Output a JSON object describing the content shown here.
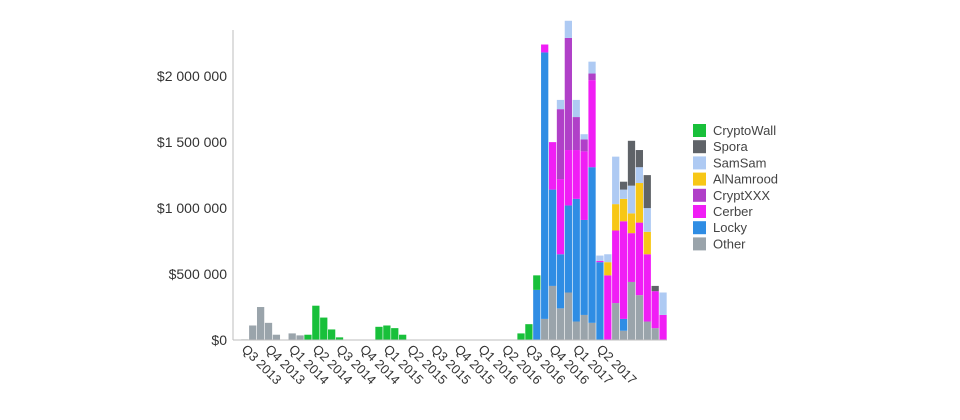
{
  "chart_data": {
    "type": "bar",
    "stacked": true,
    "ylim": [
      0,
      2350000
    ],
    "y_ticks": [
      0,
      500000,
      1000000,
      1500000,
      2000000
    ],
    "y_tick_labels": [
      "$0",
      "$500 000",
      "$1 000 000",
      "$1 500 000",
      "$2 000 000"
    ],
    "x_tick_labels": [
      "Q3 2013",
      "Q4 2013",
      "Q1 2014",
      "Q2 2014",
      "Q3 2014",
      "Q4 2014",
      "Q1 2015",
      "Q2 2015",
      "Q3 2015",
      "Q4 2015",
      "Q1 2016",
      "Q2 2016",
      "Q3 2016",
      "Q4 2016",
      "Q1 2017",
      "Q2 2017"
    ],
    "months_per_quarter": 3,
    "grid": false,
    "legend_position": "right",
    "series": [
      {
        "name": "Other",
        "color": "#9aa4ab",
        "values": [
          0,
          5000,
          110000,
          250000,
          130000,
          40000,
          0,
          50000,
          35000,
          0,
          0,
          0,
          0,
          0,
          0,
          0,
          0,
          0,
          0,
          0,
          0,
          0,
          0,
          0,
          0,
          0,
          0,
          0,
          0,
          0,
          0,
          0,
          0,
          0,
          0,
          0,
          0,
          0,
          0,
          160000,
          410000,
          240000,
          360000,
          140000,
          190000,
          130000,
          0,
          0,
          280000,
          70000,
          440000,
          340000,
          140000,
          90000,
          0
        ]
      },
      {
        "name": "Locky",
        "color": "#2f8de4",
        "values": [
          0,
          0,
          0,
          0,
          0,
          0,
          0,
          0,
          0,
          0,
          0,
          0,
          0,
          0,
          0,
          0,
          0,
          0,
          0,
          0,
          0,
          0,
          0,
          0,
          0,
          0,
          0,
          0,
          0,
          0,
          0,
          0,
          0,
          0,
          0,
          0,
          0,
          0,
          380000,
          2020000,
          730000,
          410000,
          660000,
          930000,
          720000,
          1180000,
          590000,
          0,
          0,
          90000,
          0,
          0,
          0,
          0,
          0
        ]
      },
      {
        "name": "Cerber",
        "color": "#f01ef5",
        "values": [
          0,
          0,
          0,
          0,
          0,
          0,
          0,
          0,
          0,
          0,
          0,
          0,
          0,
          0,
          0,
          0,
          0,
          0,
          0,
          0,
          0,
          0,
          0,
          0,
          0,
          0,
          0,
          0,
          0,
          0,
          0,
          0,
          0,
          0,
          0,
          0,
          0,
          0,
          0,
          60000,
          360000,
          570000,
          420000,
          370000,
          520000,
          660000,
          10000,
          490000,
          550000,
          740000,
          370000,
          550000,
          510000,
          280000,
          190000
        ]
      },
      {
        "name": "CryptXXX",
        "color": "#b040c8",
        "values": [
          0,
          0,
          0,
          0,
          0,
          0,
          0,
          0,
          0,
          0,
          0,
          0,
          0,
          0,
          0,
          0,
          0,
          0,
          0,
          0,
          0,
          0,
          0,
          0,
          0,
          0,
          0,
          0,
          0,
          0,
          0,
          0,
          0,
          0,
          0,
          0,
          0,
          0,
          0,
          0,
          0,
          530000,
          850000,
          250000,
          90000,
          50000,
          0,
          0,
          0,
          0,
          0,
          0,
          0,
          0,
          0
        ]
      },
      {
        "name": "AlNamrood",
        "color": "#f7c716",
        "values": [
          0,
          0,
          0,
          0,
          0,
          0,
          0,
          0,
          0,
          0,
          0,
          0,
          0,
          0,
          0,
          0,
          0,
          0,
          0,
          0,
          0,
          0,
          0,
          0,
          0,
          0,
          0,
          0,
          0,
          0,
          0,
          0,
          0,
          0,
          0,
          0,
          0,
          0,
          0,
          0,
          0,
          0,
          0,
          0,
          0,
          0,
          0,
          100000,
          200000,
          170000,
          150000,
          300000,
          170000,
          0,
          0
        ]
      },
      {
        "name": "SamSam",
        "color": "#aecaf3",
        "values": [
          0,
          0,
          0,
          0,
          0,
          0,
          0,
          0,
          0,
          0,
          0,
          0,
          0,
          0,
          0,
          0,
          0,
          0,
          0,
          0,
          0,
          0,
          0,
          0,
          0,
          0,
          0,
          0,
          0,
          0,
          0,
          0,
          0,
          0,
          0,
          0,
          0,
          0,
          0,
          0,
          0,
          70000,
          130000,
          130000,
          40000,
          90000,
          40000,
          60000,
          360000,
          70000,
          210000,
          120000,
          180000,
          0,
          170000
        ]
      },
      {
        "name": "Spora",
        "color": "#5f6368",
        "values": [
          0,
          0,
          0,
          0,
          0,
          0,
          0,
          0,
          0,
          0,
          0,
          0,
          0,
          0,
          0,
          0,
          0,
          0,
          0,
          0,
          0,
          0,
          0,
          0,
          0,
          0,
          0,
          0,
          0,
          0,
          0,
          0,
          0,
          0,
          0,
          0,
          0,
          0,
          0,
          0,
          0,
          0,
          0,
          0,
          0,
          0,
          0,
          0,
          0,
          60000,
          340000,
          130000,
          250000,
          40000,
          0
        ]
      },
      {
        "name": "CryptoWall",
        "color": "#18c03a",
        "values": [
          0,
          0,
          0,
          0,
          0,
          0,
          0,
          0,
          0,
          40000,
          260000,
          170000,
          80000,
          20000,
          0,
          0,
          0,
          0,
          100000,
          110000,
          90000,
          40000,
          0,
          0,
          0,
          0,
          0,
          0,
          0,
          0,
          0,
          0,
          0,
          0,
          0,
          0,
          50000,
          120000,
          110000,
          0,
          0,
          0,
          0,
          0,
          0,
          0,
          0,
          0,
          0,
          0,
          0,
          0,
          0,
          0,
          0
        ]
      }
    ],
    "legend_order": [
      "CryptoWall",
      "Spora",
      "SamSam",
      "AlNamrood",
      "CryptXXX",
      "Cerber",
      "Locky",
      "Other"
    ]
  }
}
